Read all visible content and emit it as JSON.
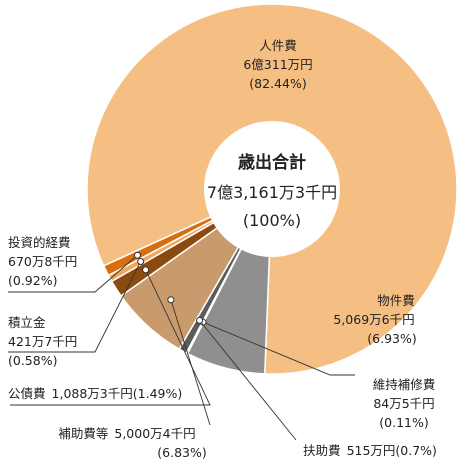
{
  "chart_data": {
    "type": "pie",
    "center": {
      "title": "歳出合計",
      "total": "7億3,161万3千円",
      "percent": "(100%)"
    },
    "slices": [
      {
        "name": "人件費",
        "amount": "6億311万円",
        "value": 82.44,
        "pct_label": "(82.44%)",
        "color": "#f5be82"
      },
      {
        "name": "物件費",
        "amount": "5,069万6千円",
        "value": 6.93,
        "pct_label": "(6.93%)",
        "color": "#8f8f8f"
      },
      {
        "name": "維持補修費",
        "amount": "84万5千円",
        "value": 0.11,
        "pct_label": "(0.11%)",
        "color": "#c9c9c9"
      },
      {
        "name": "扶助費",
        "amount": "515万円",
        "value": 0.7,
        "pct_label": "(0.7%)",
        "color": "#5c5c5c"
      },
      {
        "name": "補助費等",
        "amount": "5,000万4千円",
        "value": 6.83,
        "pct_label": "(6.83%)",
        "color": "#c99a6b"
      },
      {
        "name": "公債費",
        "amount": "1,088万3千円",
        "value": 1.49,
        "pct_label": "(1.49%)",
        "color": "#8a4a10"
      },
      {
        "name": "積立金",
        "amount": "421万7千円",
        "value": 0.58,
        "pct_label": "(0.58%)",
        "color": "#f0a860"
      },
      {
        "name": "投資的経費",
        "amount": "670万8千円",
        "value": 0.92,
        "pct_label": "(0.92%)",
        "color": "#d66f10"
      }
    ]
  }
}
